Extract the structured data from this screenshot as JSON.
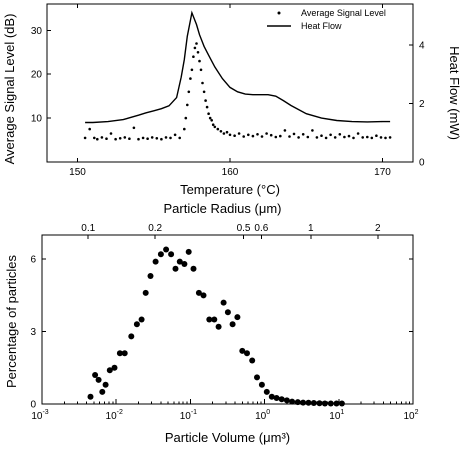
{
  "figure": {
    "top_panel": {
      "type": "line",
      "x_axis": {
        "label": "Temperature (°C)",
        "range": [
          148,
          172
        ],
        "ticks": [
          150,
          160,
          170
        ],
        "tick_labels": [
          "150",
          "160",
          "170"
        ]
      },
      "y_left": {
        "label": "Average Signal Level (dB)",
        "range": [
          0,
          36
        ],
        "ticks": [
          10,
          20,
          30
        ],
        "tick_labels": [
          "10",
          "20",
          "30"
        ]
      },
      "y_right": {
        "label": "Heat Flow (mW)",
        "range": [
          0,
          5.4
        ],
        "ticks": [
          0,
          2,
          4
        ],
        "tick_labels": [
          "0",
          "2",
          "4"
        ]
      },
      "legend": {
        "position": "top-right",
        "entries": [
          {
            "name": "Average Signal Level",
            "marker": "dot"
          },
          {
            "name": "Heat Flow",
            "marker": "line"
          }
        ]
      },
      "series": [
        {
          "name": "Heat Flow",
          "axis": "right",
          "style": "line",
          "x": [
            150.5,
            151,
            152,
            153,
            154,
            154.5,
            155,
            155.5,
            156,
            156.5,
            156.8,
            157,
            157.2,
            157.5,
            157.8,
            158,
            158.3,
            158.6,
            159,
            159.5,
            160,
            160.5,
            161,
            161.5,
            162,
            162.5,
            163,
            163.5,
            164,
            165,
            166,
            167,
            168,
            169,
            170,
            170.5
          ],
          "y": [
            1.35,
            1.35,
            1.38,
            1.45,
            1.6,
            1.68,
            1.75,
            1.82,
            1.92,
            2.2,
            2.9,
            3.5,
            4.3,
            5.1,
            4.7,
            4.35,
            3.95,
            3.65,
            3.25,
            2.85,
            2.55,
            2.4,
            2.32,
            2.3,
            2.3,
            2.3,
            2.25,
            2.1,
            1.93,
            1.65,
            1.5,
            1.42,
            1.38,
            1.37,
            1.38,
            1.38
          ]
        },
        {
          "name": "Average Signal Level",
          "axis": "left",
          "style": "dots",
          "x": [
            150.5,
            150.8,
            151.1,
            151.3,
            151.6,
            151.9,
            152.2,
            152.5,
            152.8,
            153.1,
            153.4,
            153.7,
            154,
            154.3,
            154.6,
            154.9,
            155.2,
            155.5,
            155.8,
            156.1,
            156.4,
            156.7,
            157,
            157.1,
            157.2,
            157.3,
            157.4,
            157.5,
            157.6,
            157.7,
            157.8,
            157.9,
            158,
            158.1,
            158.2,
            158.3,
            158.4,
            158.5,
            158.6,
            158.7,
            158.8,
            158.9,
            159,
            159.2,
            159.4,
            159.6,
            159.8,
            160,
            160.3,
            160.6,
            160.9,
            161.2,
            161.5,
            161.8,
            162.1,
            162.4,
            162.7,
            163,
            163.3,
            163.6,
            163.9,
            164.2,
            164.5,
            164.8,
            165.1,
            165.4,
            165.7,
            166,
            166.3,
            166.6,
            166.9,
            167.2,
            167.5,
            167.8,
            168.1,
            168.4,
            168.7,
            169,
            169.3,
            169.6,
            169.9,
            170.2,
            170.5
          ],
          "y": [
            5.5,
            7.5,
            5.5,
            5.2,
            5.6,
            5.3,
            6.5,
            5.2,
            5.4,
            5.6,
            5.3,
            7.8,
            5.2,
            5.5,
            5.3,
            5.6,
            5.4,
            5.2,
            5.6,
            5.5,
            6.2,
            5.5,
            7.5,
            10,
            13,
            16,
            19,
            21,
            24,
            26,
            27,
            25,
            23,
            21,
            18,
            16,
            14,
            12.5,
            11,
            10,
            9.5,
            8.5,
            8,
            7.5,
            7,
            6.5,
            6.8,
            6.2,
            6,
            6.5,
            5.8,
            6.2,
            5.9,
            6.3,
            5.8,
            6.5,
            6.1,
            5.7,
            5.9,
            7.2,
            5.8,
            6.4,
            5.6,
            6.3,
            5.7,
            7.2,
            5.6,
            6,
            5.5,
            6.2,
            5.6,
            6.3,
            5.7,
            5.9,
            5.5,
            6.5,
            5.6,
            5.7,
            5.5,
            6,
            5.6,
            5.5,
            5.6
          ]
        }
      ]
    },
    "bottom_panel": {
      "type": "scatter",
      "x_axis": {
        "label": "Particle Volume (μm³)",
        "scale": "log",
        "range": [
          0.001,
          100
        ],
        "ticks": [
          0.001,
          0.01,
          0.1,
          1,
          10,
          100
        ],
        "tick_label_bases": [
          "10",
          "10",
          "10",
          "10",
          "10",
          "10"
        ],
        "tick_label_exponents": [
          "-3",
          "-2",
          "-1",
          "0",
          "1",
          "2"
        ]
      },
      "x2_axis": {
        "label": "Particle Radius (μm)",
        "ticks_at_volume": [
          0.0042,
          0.0335,
          0.52,
          0.905,
          4.19,
          33.5
        ],
        "tick_labels": [
          "0.1",
          "0.2",
          "0.5",
          "0.6",
          "1",
          "2"
        ]
      },
      "y_axis": {
        "label": "Percentage of particles",
        "range": [
          0,
          7
        ],
        "ticks": [
          0,
          3,
          6
        ],
        "tick_labels": [
          "0",
          "3",
          "6"
        ]
      },
      "series": [
        {
          "name": "",
          "style": "dots",
          "x": [
            0.0045,
            0.0052,
            0.0058,
            0.0065,
            0.0072,
            0.0082,
            0.0095,
            0.0112,
            0.013,
            0.016,
            0.019,
            0.022,
            0.025,
            0.029,
            0.034,
            0.04,
            0.047,
            0.055,
            0.063,
            0.072,
            0.083,
            0.095,
            0.11,
            0.13,
            0.15,
            0.18,
            0.21,
            0.24,
            0.28,
            0.32,
            0.37,
            0.43,
            0.5,
            0.58,
            0.68,
            0.79,
            0.92,
            1.07,
            1.25,
            1.45,
            1.7,
            2,
            2.35,
            2.8,
            3.3,
            3.9,
            4.6,
            5.5,
            6.5,
            7.8,
            9.3,
            11
          ],
          "y": [
            0.3,
            1.2,
            1.0,
            0.5,
            0.8,
            1.4,
            1.5,
            2.1,
            2.1,
            2.8,
            3.3,
            3.5,
            4.6,
            5.3,
            5.9,
            6.2,
            6.4,
            6.2,
            5.6,
            5.9,
            5.8,
            6.3,
            5.6,
            4.6,
            4.5,
            3.5,
            3.5,
            3.2,
            4.2,
            3.8,
            3.3,
            3.6,
            2.2,
            2.1,
            1.8,
            1.1,
            0.8,
            0.5,
            0.3,
            0.25,
            0.2,
            0.15,
            0.1,
            0.08,
            0.06,
            0.05,
            0.04,
            0.03,
            0.02,
            0.02,
            0.02,
            0.02
          ]
        }
      ]
    }
  },
  "chart_data": [
    {
      "type": "line",
      "title": "",
      "xlabel": "Temperature (°C)",
      "ylabel": "Average Signal Level (dB)",
      "y2label": "Heat Flow (mW)",
      "xlim": [
        148,
        172
      ],
      "ylim": [
        0,
        36
      ],
      "y2lim": [
        0,
        5.4
      ],
      "series": [
        {
          "name": "Average Signal Level",
          "values_ref": "figure.top_panel.series.1"
        },
        {
          "name": "Heat Flow",
          "values_ref": "figure.top_panel.series.0"
        }
      ]
    },
    {
      "type": "scatter",
      "title": "",
      "xlabel": "Particle Volume (μm³)",
      "x2label": "Particle Radius (μm)",
      "ylabel": "Percentage of particles",
      "xlim": [
        0.001,
        100
      ],
      "ylim": [
        0,
        7
      ],
      "x_scale": "log",
      "series": [
        {
          "name": "",
          "values_ref": "figure.bottom_panel.series.0"
        }
      ]
    }
  ]
}
